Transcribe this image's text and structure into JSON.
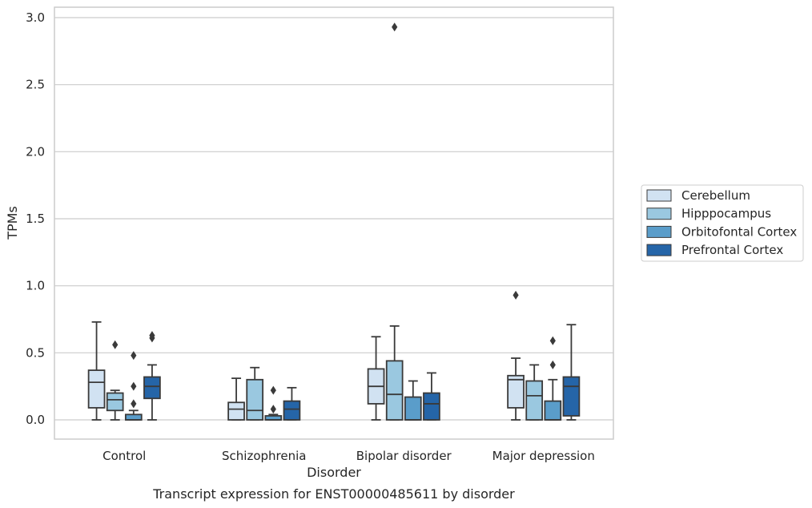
{
  "chart_data": {
    "type": "box",
    "title": "",
    "caption": "Transcript expression for ENST00000485611 by disorder",
    "xlabel": "Disorder",
    "ylabel": "TPMs",
    "ylim": [
      -0.14,
      3.08
    ],
    "yticks": [
      "0.0",
      "0.5",
      "1.0",
      "1.5",
      "2.0",
      "2.5",
      "3.0"
    ],
    "categories": [
      "Control",
      "Schizophrenia",
      "Bipolar disorder",
      "Major depression"
    ],
    "grid": "horizontal",
    "legend_position": "right",
    "series": [
      {
        "name": "Cerebellum",
        "color": "#d1e2f2",
        "boxes": [
          {
            "whisker_low": 0.0,
            "q1": 0.09,
            "median": 0.28,
            "q3": 0.37,
            "whisker_high": 0.73,
            "outliers": []
          },
          {
            "whisker_low": 0.0,
            "q1": 0.0,
            "median": 0.08,
            "q3": 0.13,
            "whisker_high": 0.31,
            "outliers": []
          },
          {
            "whisker_low": 0.0,
            "q1": 0.12,
            "median": 0.25,
            "q3": 0.38,
            "whisker_high": 0.62,
            "outliers": []
          },
          {
            "whisker_low": 0.0,
            "q1": 0.09,
            "median": 0.3,
            "q3": 0.33,
            "whisker_high": 0.46,
            "outliers": [
              0.93
            ]
          }
        ]
      },
      {
        "name": "Hipppocampus",
        "color": "#9ac8e0",
        "boxes": [
          {
            "whisker_low": 0.0,
            "q1": 0.07,
            "median": 0.15,
            "q3": 0.2,
            "whisker_high": 0.22,
            "outliers": [
              0.56
            ]
          },
          {
            "whisker_low": 0.0,
            "q1": 0.0,
            "median": 0.07,
            "q3": 0.3,
            "whisker_high": 0.39,
            "outliers": []
          },
          {
            "whisker_low": 0.0,
            "q1": 0.0,
            "median": 0.19,
            "q3": 0.44,
            "whisker_high": 0.7,
            "outliers": [
              2.93
            ]
          },
          {
            "whisker_low": 0.0,
            "q1": 0.0,
            "median": 0.18,
            "q3": 0.29,
            "whisker_high": 0.41,
            "outliers": []
          }
        ]
      },
      {
        "name": "Orbitofontal Cortex",
        "color": "#5a9dca",
        "boxes": [
          {
            "whisker_low": 0.0,
            "q1": 0.0,
            "median": 0.0,
            "q3": 0.04,
            "whisker_high": 0.07,
            "outliers": [
              0.12,
              0.25,
              0.48
            ]
          },
          {
            "whisker_low": 0.0,
            "q1": 0.0,
            "median": 0.0,
            "q3": 0.03,
            "whisker_high": 0.04,
            "outliers": [
              0.08,
              0.22
            ]
          },
          {
            "whisker_low": 0.0,
            "q1": 0.0,
            "median": 0.0,
            "q3": 0.17,
            "whisker_high": 0.29,
            "outliers": []
          },
          {
            "whisker_low": 0.0,
            "q1": 0.0,
            "median": 0.0,
            "q3": 0.14,
            "whisker_high": 0.3,
            "outliers": [
              0.41,
              0.59
            ]
          }
        ]
      },
      {
        "name": "Prefrontal Cortex",
        "color": "#2565a8",
        "boxes": [
          {
            "whisker_low": 0.0,
            "q1": 0.16,
            "median": 0.25,
            "q3": 0.32,
            "whisker_high": 0.41,
            "outliers": [
              0.61,
              0.63
            ]
          },
          {
            "whisker_low": 0.0,
            "q1": 0.0,
            "median": 0.08,
            "q3": 0.14,
            "whisker_high": 0.24,
            "outliers": []
          },
          {
            "whisker_low": 0.0,
            "q1": 0.0,
            "median": 0.12,
            "q3": 0.2,
            "whisker_high": 0.35,
            "outliers": []
          },
          {
            "whisker_low": 0.0,
            "q1": 0.03,
            "median": 0.25,
            "q3": 0.32,
            "whisker_high": 0.71,
            "outliers": []
          }
        ]
      }
    ]
  }
}
